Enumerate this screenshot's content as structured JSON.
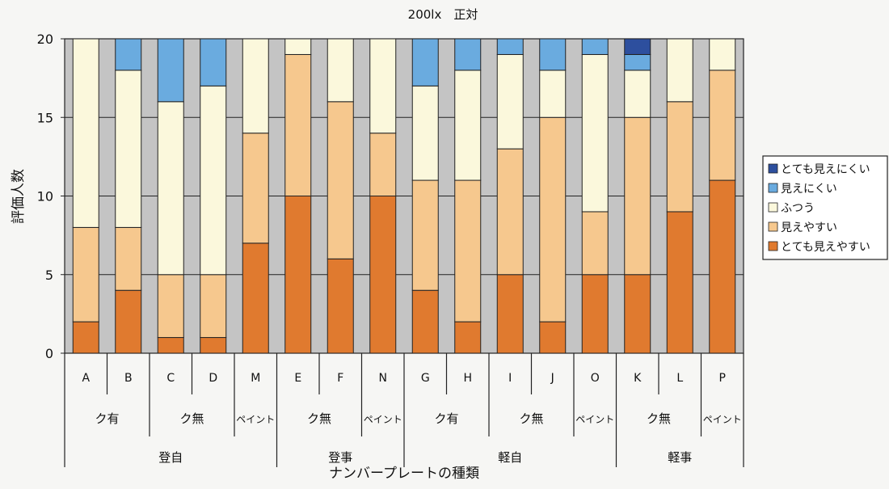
{
  "chart_data": {
    "type": "bar",
    "stacked": true,
    "title": "200lx　正対",
    "ylabel": "評価人数",
    "xlabel": "ナンバープレートの種類",
    "ylim": [
      0,
      20
    ],
    "yticks": [
      0,
      5,
      10,
      15,
      20
    ],
    "grid": true,
    "legend_position": "right",
    "categories": [
      "A",
      "B",
      "C",
      "D",
      "M",
      "E",
      "F",
      "N",
      "G",
      "H",
      "I",
      "J",
      "O",
      "K",
      "L",
      "P"
    ],
    "group_level1": [
      {
        "label": "ク有",
        "span": 2
      },
      {
        "label": "ク無",
        "span": 2
      },
      {
        "label": "ペイント",
        "span": 1
      },
      {
        "label": "ク無",
        "span": 2
      },
      {
        "label": "ペイント",
        "span": 1
      },
      {
        "label": "ク有",
        "span": 2
      },
      {
        "label": "ク無",
        "span": 2
      },
      {
        "label": "ペイント",
        "span": 1
      },
      {
        "label": "ク無",
        "span": 2
      },
      {
        "label": "ペイント",
        "span": 1
      }
    ],
    "group_level2": [
      {
        "label": "登自",
        "span": 5
      },
      {
        "label": "登事",
        "span": 3
      },
      {
        "label": "軽自",
        "span": 5
      },
      {
        "label": "軽事",
        "span": 3
      }
    ],
    "series": [
      {
        "name": "とても見えやすい",
        "color": "#e07a2f",
        "values": [
          2,
          4,
          1,
          1,
          7,
          10,
          6,
          10,
          4,
          2,
          5,
          2,
          5,
          5,
          9,
          11
        ]
      },
      {
        "name": "見えやすい",
        "color": "#f6c88e",
        "values": [
          6,
          4,
          4,
          4,
          7,
          9,
          10,
          4,
          7,
          9,
          8,
          13,
          4,
          10,
          7,
          7
        ]
      },
      {
        "name": "ふつう",
        "color": "#fbf8dc",
        "values": [
          12,
          10,
          11,
          12,
          6,
          1,
          4,
          6,
          6,
          7,
          6,
          3,
          10,
          3,
          4,
          2
        ]
      },
      {
        "name": "見えにくい",
        "color": "#6aabdf",
        "values": [
          0,
          2,
          4,
          3,
          0,
          0,
          0,
          0,
          3,
          2,
          1,
          2,
          1,
          1,
          0,
          0
        ]
      },
      {
        "name": "とても見えにくい",
        "color": "#2d4f9e",
        "values": [
          0,
          0,
          0,
          0,
          0,
          0,
          0,
          0,
          0,
          0,
          0,
          0,
          0,
          1,
          0,
          0
        ]
      }
    ],
    "legend_order": [
      "とても見えにくい",
      "見えにくい",
      "ふつう",
      "見えやすい",
      "とても見えやすい"
    ]
  }
}
